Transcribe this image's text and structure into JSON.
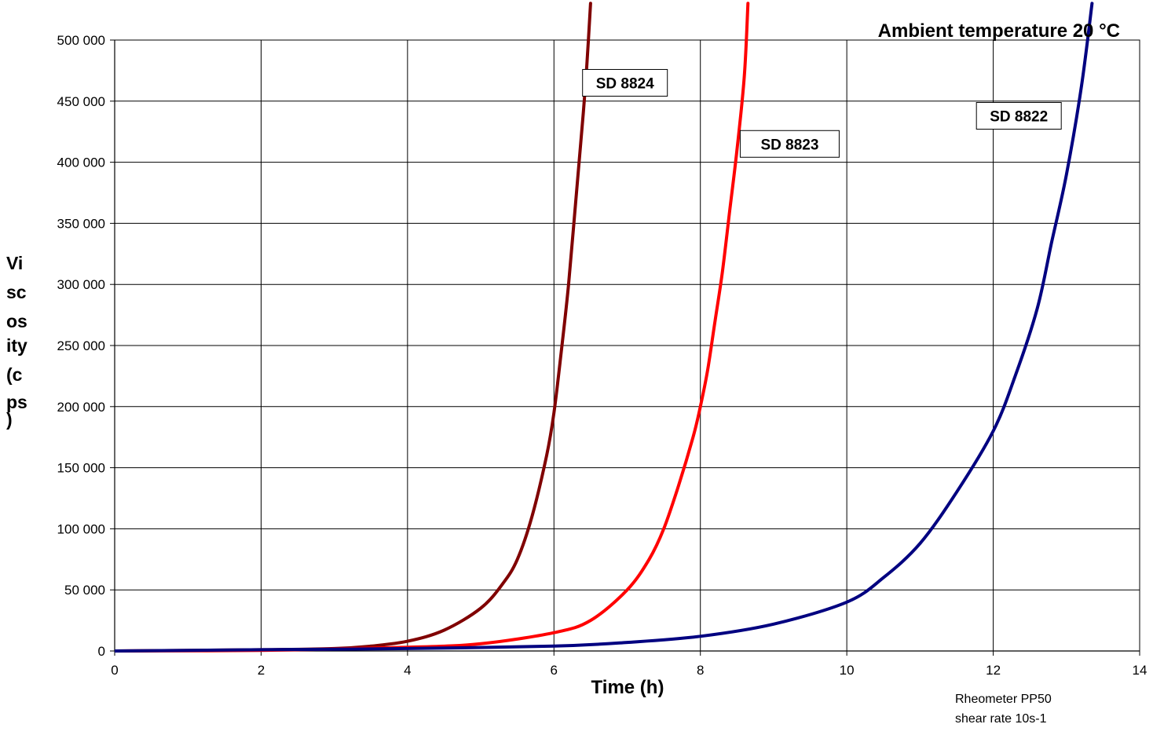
{
  "chart_data": {
    "type": "line",
    "title": "",
    "annotation_title": "Ambient temperature 20 °C",
    "xlabel": "Time (h)",
    "ylabel": "Viscosity (cps)",
    "ylabel_lines": [
      "Vi",
      "sc",
      "os",
      "ity",
      "(c",
      "ps",
      ")"
    ],
    "xlim": [
      0,
      14
    ],
    "ylim": [
      0,
      500000
    ],
    "x_ticks": [
      0,
      2,
      4,
      6,
      8,
      10,
      12,
      14
    ],
    "x_tick_labels": [
      "0",
      "2",
      "4",
      "6",
      "8",
      "10",
      "12",
      "14"
    ],
    "y_ticks": [
      0,
      50000,
      100000,
      150000,
      200000,
      250000,
      300000,
      350000,
      400000,
      450000,
      500000
    ],
    "y_tick_labels": [
      "0",
      "50 000",
      "100 000",
      "150 000",
      "200 000",
      "250 000",
      "300 000",
      "350 000",
      "400 000",
      "450 000",
      "500 000"
    ],
    "grid": true,
    "note_lines": [
      "Rheometer PP50",
      "shear rate 10s-1"
    ],
    "series": [
      {
        "name": "SD 8824",
        "color": "#800000",
        "x": [
          0,
          1,
          2,
          3,
          3.5,
          4,
          4.5,
          5,
          5.3,
          5.5,
          5.7,
          5.9,
          6.0,
          6.1,
          6.2,
          6.3,
          6.4,
          6.45,
          6.5
        ],
        "y": [
          0,
          500,
          1000,
          2000,
          4000,
          8000,
          17000,
          35000,
          55000,
          75000,
          110000,
          160000,
          195000,
          245000,
          300000,
          370000,
          440000,
          480000,
          530000
        ]
      },
      {
        "name": "SD 8823",
        "color": "#ff0000",
        "x": [
          0,
          2,
          4,
          5,
          6,
          6.5,
          7,
          7.3,
          7.5,
          7.7,
          7.9,
          8.0,
          8.1,
          8.2,
          8.3,
          8.4,
          8.5,
          8.6,
          8.65
        ],
        "y": [
          0,
          500,
          3000,
          6000,
          15000,
          25000,
          50000,
          75000,
          100000,
          135000,
          175000,
          200000,
          230000,
          270000,
          310000,
          360000,
          410000,
          470000,
          530000
        ]
      },
      {
        "name": "SD 8822",
        "color": "#000080",
        "x": [
          0,
          2,
          4,
          6,
          7,
          8,
          9,
          10,
          10.5,
          11,
          11.5,
          12,
          12.3,
          12.6,
          12.8,
          13.0,
          13.2,
          13.35
        ],
        "y": [
          0,
          1000,
          2000,
          4000,
          7000,
          12000,
          22000,
          40000,
          60000,
          88000,
          130000,
          180000,
          225000,
          280000,
          335000,
          390000,
          460000,
          530000
        ]
      }
    ]
  }
}
